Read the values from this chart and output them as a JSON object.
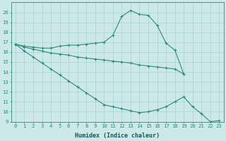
{
  "xlabel": "Humidex (Indice chaleur)",
  "x_values": [
    0,
    1,
    2,
    3,
    4,
    5,
    6,
    7,
    8,
    9,
    10,
    11,
    12,
    13,
    14,
    15,
    16,
    17,
    18,
    19,
    20,
    21,
    22,
    23
  ],
  "line1": [
    16.8,
    16.6,
    16.5,
    16.4,
    16.4,
    16.6,
    16.7,
    16.7,
    16.8,
    16.9,
    17.0,
    17.7,
    19.6,
    20.2,
    19.8,
    19.7,
    18.7,
    16.9,
    16.2,
    13.8,
    null,
    null,
    null,
    null
  ],
  "line2": [
    16.8,
    16.5,
    16.3,
    16.1,
    15.9,
    15.8,
    15.7,
    15.5,
    15.4,
    15.3,
    15.2,
    15.1,
    15.0,
    14.9,
    14.7,
    14.6,
    14.5,
    14.4,
    14.3,
    13.8,
    null,
    null,
    null,
    null
  ],
  "line3": [
    16.8,
    16.1,
    15.5,
    14.9,
    14.3,
    13.7,
    13.1,
    12.5,
    11.9,
    11.3,
    10.7,
    10.5,
    10.3,
    10.1,
    9.9,
    10.0,
    10.2,
    10.5,
    11.0,
    11.5,
    10.5,
    9.8,
    9.0,
    9.1
  ],
  "line_color": "#2e8b7a",
  "bg_color": "#cce8e8",
  "grid_color": "#aad0d0",
  "ylim": [
    9,
    21
  ],
  "xlim": [
    -0.5,
    23.5
  ],
  "yticks": [
    9,
    10,
    11,
    12,
    13,
    14,
    15,
    16,
    17,
    18,
    19,
    20
  ],
  "xticks": [
    0,
    1,
    2,
    3,
    4,
    5,
    6,
    7,
    8,
    9,
    10,
    11,
    12,
    13,
    14,
    15,
    16,
    17,
    18,
    19,
    20,
    21,
    22,
    23
  ],
  "tick_fontsize": 5.2,
  "xlabel_fontsize": 6.0
}
